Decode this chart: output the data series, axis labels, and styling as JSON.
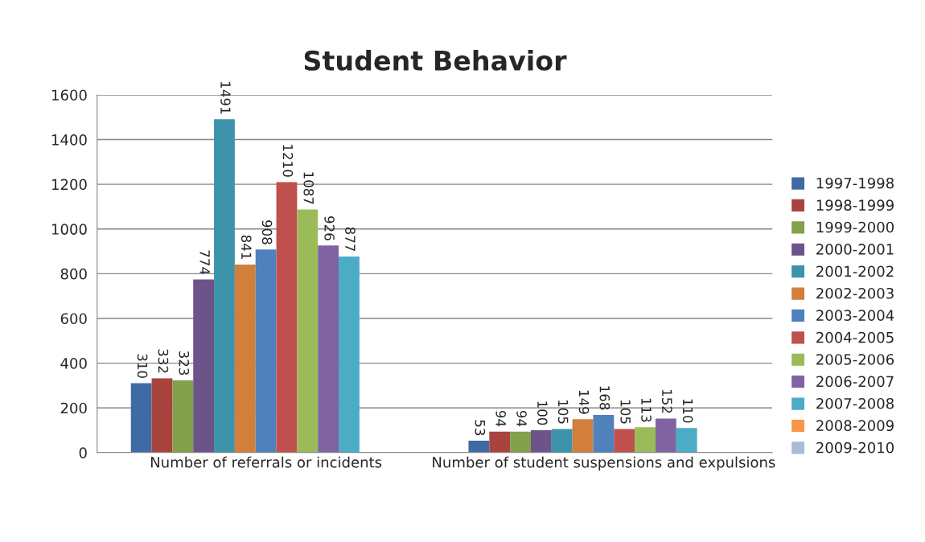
{
  "chart_data": {
    "type": "bar",
    "title": "Student Behavior",
    "categories": [
      "Number of referrals or incidents",
      "Number of student suspensions and expulsions"
    ],
    "series": [
      {
        "name": "1997-1998",
        "color": "#3f6ba4",
        "values": [
          310,
          53
        ]
      },
      {
        "name": "1998-1999",
        "color": "#a84340",
        "values": [
          332,
          94
        ]
      },
      {
        "name": "1999-2000",
        "color": "#84a04b",
        "values": [
          323,
          94
        ]
      },
      {
        "name": "2000-2001",
        "color": "#6c548b",
        "values": [
          774,
          100
        ]
      },
      {
        "name": "2001-2002",
        "color": "#3d93aa",
        "values": [
          1491,
          105
        ]
      },
      {
        "name": "2002-2003",
        "color": "#d17f3a",
        "values": [
          841,
          149
        ]
      },
      {
        "name": "2003-2004",
        "color": "#4f81bd",
        "values": [
          908,
          168
        ]
      },
      {
        "name": "2004-2005",
        "color": "#c0504d",
        "values": [
          1210,
          105
        ]
      },
      {
        "name": "2005-2006",
        "color": "#9bbb59",
        "values": [
          1087,
          113
        ]
      },
      {
        "name": "2006-2007",
        "color": "#8064a2",
        "values": [
          926,
          152
        ]
      },
      {
        "name": "2007-2008",
        "color": "#4bacc6",
        "values": [
          877,
          110
        ]
      },
      {
        "name": "2008-2009",
        "color": "#f79646",
        "values": [
          null,
          null
        ]
      },
      {
        "name": "2009-2010",
        "color": "#aabad7",
        "values": [
          null,
          null
        ]
      }
    ],
    "ylim": [
      0,
      1600
    ],
    "yticks": [
      0,
      200,
      400,
      600,
      800,
      1000,
      1200,
      1400,
      1600
    ],
    "grid": "y",
    "legend": "right",
    "data_labels": true
  }
}
